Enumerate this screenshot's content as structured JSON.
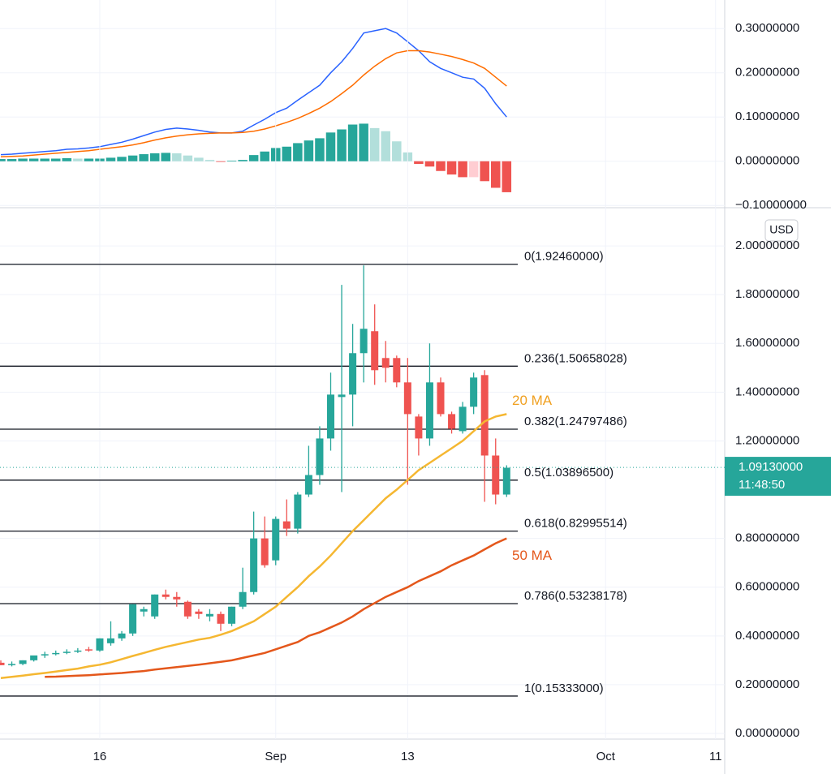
{
  "chart_data": [
    {
      "type": "macd",
      "xlim": [
        -0.074,
        65.83
      ],
      "ylim": [
        -0.105,
        0.3646
      ],
      "yticks": [
        {
          "value": 0.3,
          "label": "0.30000000"
        },
        {
          "value": 0.2,
          "label": "0.20000000"
        },
        {
          "value": 0.1,
          "label": "0.10000000"
        },
        {
          "value": 0,
          "label": "0.00000000"
        },
        {
          "value": -0.1,
          "label": "−0.10000000"
        }
      ],
      "series": [
        {
          "color": "#2962ff",
          "values": [
            0.015,
            0.016,
            0.018,
            0.02,
            0.022,
            0.024,
            0.027,
            0.028,
            0.03,
            0.033,
            0.038,
            0.043,
            0.05,
            0.058,
            0.066,
            0.072,
            0.075,
            0.073,
            0.07,
            0.066,
            0.064,
            0.064,
            0.068,
            0.082,
            0.095,
            0.11,
            0.12,
            0.138,
            0.155,
            0.172,
            0.2,
            0.225,
            0.255,
            0.29,
            0.295,
            0.3,
            0.29,
            0.27,
            0.25,
            0.225,
            0.21,
            0.2,
            0.19,
            0.186,
            0.165,
            0.13,
            0.1
          ]
        },
        {
          "color": "#ff6d00",
          "values": [
            0.01,
            0.011,
            0.012,
            0.014,
            0.016,
            0.018,
            0.02,
            0.022,
            0.024,
            0.027,
            0.03,
            0.033,
            0.037,
            0.042,
            0.048,
            0.053,
            0.057,
            0.06,
            0.062,
            0.063,
            0.064,
            0.064,
            0.065,
            0.068,
            0.073,
            0.08,
            0.088,
            0.097,
            0.108,
            0.12,
            0.135,
            0.153,
            0.172,
            0.195,
            0.215,
            0.232,
            0.245,
            0.25,
            0.25,
            0.247,
            0.242,
            0.237,
            0.23,
            0.222,
            0.21,
            0.19,
            0.17
          ]
        }
      ],
      "histogram": [
        0.005,
        0.005,
        0.006,
        0.006,
        0.006,
        0.006,
        0.007,
        0.006,
        0.006,
        0.006,
        0.008,
        0.01,
        0.013,
        0.016,
        0.018,
        0.019,
        0.018,
        0.013,
        0.008,
        0.003,
        -0.001,
        0.001,
        0.003,
        0.014,
        0.022,
        0.03,
        0.033,
        0.041,
        0.047,
        0.052,
        0.065,
        0.072,
        0.083,
        0.085,
        0.075,
        0.068,
        0.045,
        0.02,
        -0.006,
        -0.012,
        -0.022,
        -0.03,
        -0.036,
        -0.036,
        -0.045,
        -0.06,
        -0.07
      ],
      "histogram_colors": [
        "#26a69a",
        "#b2dfdb",
        "#ffcdd2",
        "#ef5350"
      ]
    },
    {
      "type": "candlestick",
      "xlim": [
        -0.074,
        65.83
      ],
      "ylim": [
        -0.0233,
        2.15
      ],
      "xticks": [
        {
          "value": 9,
          "label": "16"
        },
        {
          "value": 25,
          "label": "Sep"
        },
        {
          "value": 37,
          "label": "13"
        },
        {
          "value": 55,
          "label": "Oct"
        },
        {
          "value": 65,
          "label": "11"
        }
      ],
      "yticks": [
        {
          "value": 0,
          "label": "0.00000000"
        },
        {
          "value": 0.2,
          "label": "0.20000000"
        },
        {
          "value": 0.4,
          "label": "0.40000000"
        },
        {
          "value": 0.6,
          "label": "0.60000000"
        },
        {
          "value": 0.8,
          "label": "0.80000000"
        },
        {
          "value": 1.2,
          "label": "1.20000000"
        },
        {
          "value": 1.4,
          "label": "1.40000000"
        },
        {
          "value": 1.6,
          "label": "1.60000000"
        },
        {
          "value": 1.8,
          "label": "1.80000000"
        },
        {
          "value": 2.0,
          "label": "2.00000000"
        }
      ],
      "currency": "USD",
      "up_color": "#26a69a",
      "down_color": "#ef5350",
      "open": [
        0.29,
        0.28,
        0.285,
        0.3,
        0.32,
        0.325,
        0.33,
        0.335,
        0.345,
        0.34,
        0.37,
        0.39,
        0.41,
        0.5,
        0.48,
        0.57,
        0.56,
        0.54,
        0.5,
        0.48,
        0.49,
        0.45,
        0.52,
        0.58,
        0.8,
        0.71,
        0.87,
        0.84,
        0.98,
        1.06,
        1.21,
        1.38,
        1.39,
        1.56,
        1.65,
        1.54,
        1.54,
        1.44,
        1.3,
        1.21,
        1.44,
        1.31,
        1.24,
        1.34,
        1.47,
        1.14,
        0.98
      ],
      "high": [
        0.3,
        0.295,
        0.3,
        0.315,
        0.335,
        0.34,
        0.345,
        0.35,
        0.355,
        0.39,
        0.46,
        0.42,
        0.53,
        0.52,
        0.57,
        0.59,
        0.58,
        0.545,
        0.51,
        0.51,
        0.5,
        0.52,
        0.68,
        0.91,
        0.89,
        0.89,
        0.96,
        0.99,
        1.18,
        1.26,
        1.48,
        1.84,
        1.68,
        1.92,
        1.76,
        1.61,
        1.55,
        1.54,
        1.31,
        1.6,
        1.46,
        1.32,
        1.36,
        1.48,
        1.49,
        1.21,
        1.1
      ],
      "low": [
        0.28,
        0.275,
        0.28,
        0.295,
        0.31,
        0.32,
        0.325,
        0.33,
        0.335,
        0.335,
        0.36,
        0.38,
        0.4,
        0.48,
        0.47,
        0.55,
        0.52,
        0.47,
        0.47,
        0.46,
        0.42,
        0.44,
        0.51,
        0.57,
        0.68,
        0.69,
        0.81,
        0.82,
        0.97,
        1.02,
        1.16,
        0.99,
        1.26,
        1.44,
        1.43,
        1.44,
        1.42,
        1.02,
        1.14,
        1.18,
        1.3,
        1.23,
        1.23,
        1.31,
        0.95,
        0.94,
        0.97
      ],
      "close": [
        0.28,
        0.285,
        0.3,
        0.32,
        0.325,
        0.33,
        0.335,
        0.34,
        0.34,
        0.39,
        0.39,
        0.41,
        0.53,
        0.51,
        0.57,
        0.56,
        0.55,
        0.48,
        0.49,
        0.49,
        0.45,
        0.52,
        0.58,
        0.8,
        0.69,
        0.88,
        0.84,
        0.98,
        1.06,
        1.21,
        1.39,
        1.39,
        1.56,
        1.66,
        1.49,
        1.5,
        1.44,
        1.31,
        1.21,
        1.44,
        1.31,
        1.25,
        1.34,
        1.46,
        1.14,
        0.98,
        1.09
      ],
      "series": [
        {
          "name": "20 MA",
          "color": "#f5b731",
          "label_color": "#f0a020",
          "values": [
            0.227,
            0.232,
            0.237,
            0.243,
            0.248,
            0.254,
            0.26,
            0.266,
            0.275,
            0.282,
            0.292,
            0.305,
            0.318,
            0.33,
            0.343,
            0.355,
            0.365,
            0.375,
            0.385,
            0.392,
            0.405,
            0.42,
            0.44,
            0.46,
            0.49,
            0.52,
            0.56,
            0.6,
            0.645,
            0.685,
            0.73,
            0.78,
            0.83,
            0.875,
            0.92,
            0.965,
            1.0,
            1.04,
            1.08,
            1.11,
            1.14,
            1.17,
            1.2,
            1.24,
            1.28,
            1.3,
            1.31
          ]
        },
        {
          "name": "50 MA",
          "color": "#e4571b",
          "label_color": "#e4571b",
          "values": [
            null,
            null,
            null,
            null,
            0.232,
            0.233,
            0.235,
            0.237,
            0.239,
            0.242,
            0.245,
            0.248,
            0.252,
            0.256,
            0.262,
            0.267,
            0.272,
            0.277,
            0.282,
            0.288,
            0.294,
            0.3,
            0.31,
            0.32,
            0.33,
            0.345,
            0.36,
            0.375,
            0.4,
            0.415,
            0.435,
            0.455,
            0.48,
            0.51,
            0.535,
            0.56,
            0.58,
            0.6,
            0.625,
            0.645,
            0.665,
            0.69,
            0.71,
            0.73,
            0.755,
            0.78,
            0.8
          ]
        }
      ],
      "fib_levels": [
        {
          "value": 1.9246,
          "label": "0(1.92460000)"
        },
        {
          "value": 1.50658028,
          "label": "0.236(1.50658028)"
        },
        {
          "value": 1.24797486,
          "label": "0.382(1.24797486)"
        },
        {
          "value": 1.038965,
          "label": "0.5(1.03896500)"
        },
        {
          "value": 0.82995514,
          "label": "0.618(0.82995514)"
        },
        {
          "value": 0.53238178,
          "label": "0.786(0.53238178)"
        },
        {
          "value": 0.15333,
          "label": "1(0.15333000)"
        }
      ],
      "current_price": {
        "value": 1.0913,
        "label": "1.09130000"
      },
      "countdown": "11:48:50"
    }
  ]
}
